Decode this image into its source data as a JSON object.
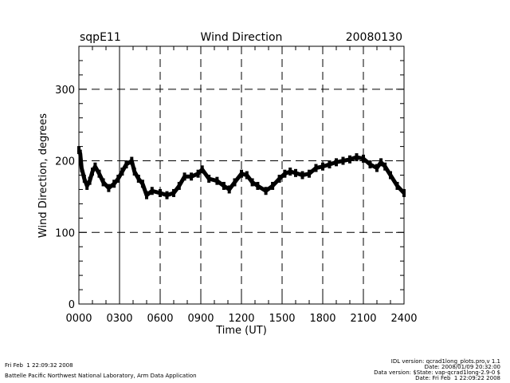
{
  "chart_data": {
    "type": "scatter",
    "title": "Wind Direction",
    "site": "sqpE11",
    "date": "20080130",
    "xlabel": "Time (UT)",
    "ylabel": "Wind Direction, degrees",
    "xlim": [
      0,
      2400
    ],
    "ylim": [
      0,
      360
    ],
    "xticks": [
      "0000",
      "0300",
      "0600",
      "0900",
      "1200",
      "1500",
      "1800",
      "2100",
      "2400"
    ],
    "yticks": [
      0,
      100,
      200,
      300
    ],
    "grid": "dashed",
    "x_hours": [
      0,
      0.1,
      0.2,
      0.4,
      0.6,
      0.8,
      1.0,
      1.2,
      1.5,
      1.8,
      2.2,
      2.6,
      2.9,
      3.2,
      3.5,
      3.9,
      4.1,
      4.4,
      4.7,
      5.0,
      5.4,
      6.0,
      6.5,
      7.0,
      7.4,
      7.8,
      8.3,
      8.8,
      9.1,
      9.6,
      10.2,
      10.7,
      11.1,
      11.5,
      12.0,
      12.4,
      12.8,
      13.2,
      13.8,
      14.3,
      14.8,
      15.2,
      15.6,
      16.0,
      16.5,
      17.0,
      17.5,
      18.0,
      18.5,
      19.0,
      19.5,
      20.0,
      20.5,
      21.0,
      21.5,
      22.0,
      22.3,
      22.6,
      23.0,
      23.5,
      24.0
    ],
    "values": [
      215,
      210,
      190,
      175,
      165,
      172,
      185,
      192,
      182,
      170,
      162,
      168,
      175,
      185,
      195,
      200,
      185,
      175,
      168,
      152,
      158,
      155,
      152,
      155,
      165,
      178,
      178,
      182,
      188,
      175,
      172,
      165,
      160,
      170,
      182,
      180,
      170,
      165,
      158,
      165,
      175,
      182,
      185,
      183,
      180,
      182,
      190,
      192,
      195,
      198,
      200,
      202,
      205,
      203,
      195,
      190,
      198,
      192,
      180,
      165,
      155
    ]
  },
  "footer": {
    "left_date": "Fri Feb  1 22:09:32 2008",
    "left_org": "Battelle Pacific Northwest National Laboratory, Arm Data Application",
    "right_lines": [
      "IDL version: qcrad1long_plots.pro,v 1.1",
      "Date: 2008/01/09 20:32:00",
      "Data version: $State: vap-qcrad1long-2.9-0 $",
      "Date: Fri Feb  1 22:09:22 2008"
    ]
  }
}
